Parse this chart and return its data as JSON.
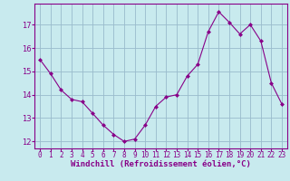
{
  "x": [
    0,
    1,
    2,
    3,
    4,
    5,
    6,
    7,
    8,
    9,
    10,
    11,
    12,
    13,
    14,
    15,
    16,
    17,
    18,
    19,
    20,
    21,
    22,
    23
  ],
  "y": [
    15.5,
    14.9,
    14.2,
    13.8,
    13.7,
    13.2,
    12.7,
    12.3,
    12.0,
    12.1,
    12.7,
    13.5,
    13.9,
    14.0,
    14.8,
    15.3,
    16.7,
    17.55,
    17.1,
    16.6,
    17.0,
    16.3,
    14.5,
    13.6
  ],
  "line_color": "#880088",
  "marker": "D",
  "marker_size": 2.0,
  "bg_color": "#c8eaee",
  "grid_color": "#99bbcc",
  "xlabel": "Windchill (Refroidissement éolien,°C)",
  "xlabel_color": "#880088",
  "tick_color": "#880088",
  "ylim": [
    11.7,
    17.9
  ],
  "xlim": [
    -0.5,
    23.5
  ],
  "yticks": [
    12,
    13,
    14,
    15,
    16,
    17
  ],
  "ytick_labels": [
    "12",
    "13",
    "14",
    "15",
    "16",
    "17"
  ],
  "xticks": [
    0,
    1,
    2,
    3,
    4,
    5,
    6,
    7,
    8,
    9,
    10,
    11,
    12,
    13,
    14,
    15,
    16,
    17,
    18,
    19,
    20,
    21,
    22,
    23
  ],
  "spine_color": "#880088",
  "xlabel_fontsize": 6.5,
  "tick_fontsize": 5.5
}
